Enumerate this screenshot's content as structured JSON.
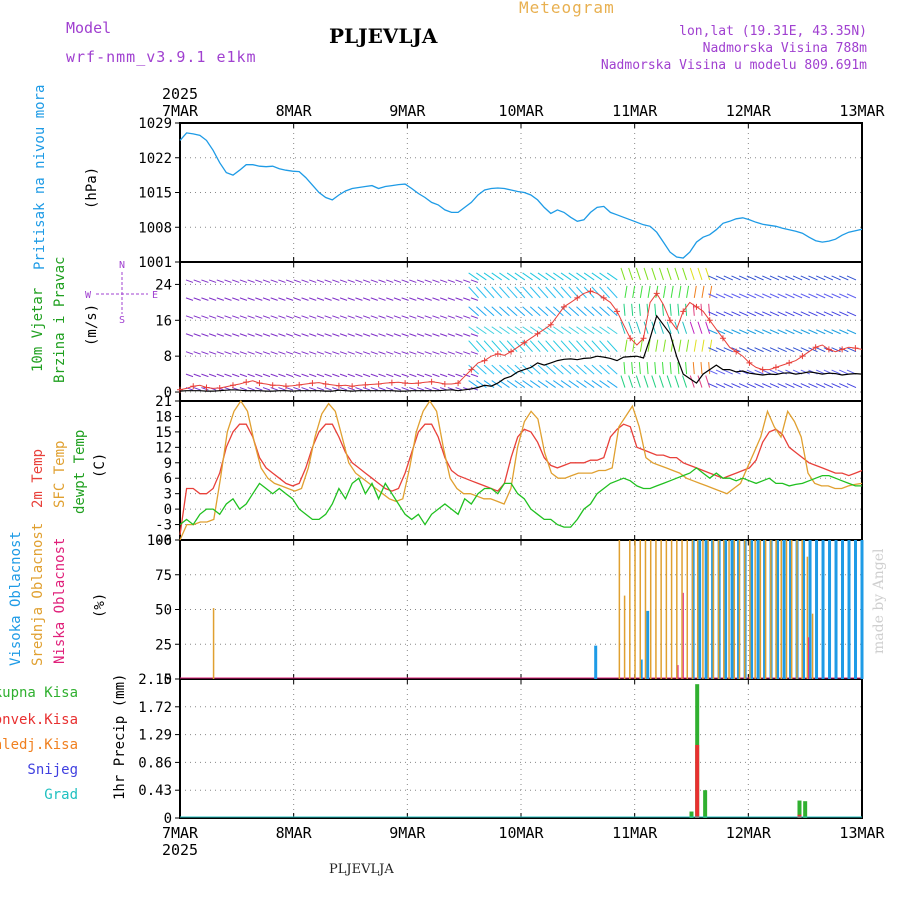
{
  "header": {
    "model_label": "Model",
    "model_name": "wrf-nmm_v3.9.1 e1km",
    "station": "PLJEVLJA",
    "title": "Meteogram",
    "lonlat": "lon,lat (19.31E, 43.35N)",
    "elevation": "Nadmorska Visina 788m",
    "model_elevation": "Nadmorska Visina u modelu 809.691m",
    "footer_station": "PLJEVLJA",
    "watermark": "made by Angel"
  },
  "colors": {
    "pressure": "#1e9be6",
    "temp2m": "#e8403a",
    "sfc": "#e0a030",
    "dew": "#20c020",
    "high_cloud": "#1e9be6",
    "mid_cloud": "#e0a030",
    "low_cloud": "#e0207a",
    "total_precip": "#30b030",
    "conv_precip": "#e83030",
    "frozen": "#f08020",
    "snow": "#4040e0",
    "grad": "#20c0c0",
    "title_orange": "#e8b050",
    "purple": "#a040d0"
  },
  "chart_data": [
    {
      "type": "line",
      "panel": "pressure",
      "ylabel": [
        "Pritisak na nivou mora",
        "(hPa)"
      ],
      "x_ticks": [
        "7MAR",
        "8MAR",
        "9MAR",
        "10MAR",
        "11MAR",
        "12MAR",
        "13MAR"
      ],
      "year": "2025",
      "ylim": [
        1001,
        1029
      ],
      "yticks": [
        1001,
        1008,
        1015,
        1022,
        1029
      ],
      "series": [
        {
          "values": [
            1025.5,
            1027,
            1026.8,
            1026.5,
            1025.5,
            1023.5,
            1021,
            1019,
            1018.5,
            1019.5,
            1020.6,
            1020.6,
            1020.3,
            1020.2,
            1020.3,
            1019.8,
            1019.5,
            1019.3,
            1019.2,
            1018,
            1016.5,
            1015,
            1014,
            1013.5,
            1014.5,
            1015.3,
            1015.8,
            1016,
            1016.2,
            1016.4,
            1015.8,
            1016.2,
            1016.4,
            1016.6,
            1016.7,
            1015.8,
            1014.8,
            1014,
            1013,
            1012.5,
            1011.5,
            1011,
            1011,
            1012,
            1013,
            1014.5,
            1015.5,
            1015.8,
            1015.9,
            1015.8,
            1015.5,
            1015.2,
            1015,
            1014.5,
            1013.5,
            1012,
            1010.8,
            1011.5,
            1011,
            1010,
            1009.2,
            1009.5,
            1011,
            1012,
            1012.2,
            1011,
            1010.5,
            1010,
            1009.5,
            1009,
            1008.5,
            1008.2,
            1007,
            1005,
            1003,
            1002,
            1001.8,
            1003,
            1005,
            1006,
            1006.5,
            1007.5,
            1008.8,
            1009.2,
            1009.7,
            1009.9,
            1009.5,
            1009,
            1008.6,
            1008.4,
            1008.2,
            1007.8,
            1007.5,
            1007.2,
            1006.8,
            1006,
            1005.3,
            1005.0,
            1005.2,
            1005.6,
            1006.4,
            1007.0,
            1007.3,
            1007.6
          ]
        }
      ]
    },
    {
      "type": "line",
      "panel": "wind",
      "ylabel": [
        "10m Vjetar",
        "Brzina i Pravac",
        "(m/s)"
      ],
      "compass": [
        "N",
        "S",
        "W",
        "E"
      ],
      "ylim": [
        -2,
        29
      ],
      "yticks": [
        0,
        8,
        16,
        24
      ],
      "speed_black": [
        0.2,
        0.3,
        0.3,
        0.3,
        0.2,
        0.2,
        0.3,
        0.4,
        0.5,
        0.4,
        0.3,
        0.3,
        0.3,
        0.2,
        0.2,
        0.3,
        0.3,
        0.2,
        0.3,
        0.3,
        0.3,
        0.3,
        0.2,
        0.2,
        0.4,
        0.3,
        0.2,
        0.3,
        0.3,
        0.3,
        0.3,
        0.3,
        0.3,
        0.2,
        0.2,
        0.3,
        0.3,
        0.3,
        0.3,
        0.3,
        0.4,
        0.5,
        0.3,
        0.5,
        0.7,
        1.0,
        1.5,
        1.3,
        2.0,
        3.0,
        3.5,
        4.5,
        5.0,
        5.5,
        6.5,
        6.0,
        6.5,
        7.0,
        7.3,
        7.4,
        7.2,
        7.5,
        7.6,
        8.0,
        7.8,
        7.5,
        7.0,
        7.8,
        7.9,
        8.0,
        7.6,
        12,
        17,
        15,
        13,
        8,
        4,
        3,
        2,
        4,
        5,
        6,
        5,
        5,
        4.5,
        4.7,
        4.2,
        4.0,
        3.8,
        4.0,
        3.9,
        4.2,
        4.3,
        4.0,
        4.2,
        4.5,
        4.3,
        4.0,
        4.2,
        4.1,
        3.8,
        4.0,
        4.1,
        4.0
      ],
      "gust_red": [
        0.5,
        0.8,
        1.3,
        1.5,
        1.0,
        0.8,
        0.9,
        1.2,
        1.5,
        1.8,
        2.2,
        2.5,
        2.0,
        1.8,
        1.5,
        1.5,
        1.3,
        1.4,
        1.6,
        1.8,
        2.0,
        2.1,
        1.8,
        1.6,
        1.4,
        1.5,
        1.3,
        1.5,
        1.6,
        1.7,
        1.8,
        2.0,
        2.1,
        2.2,
        2.0,
        1.9,
        2.0,
        2.2,
        2.3,
        2.1,
        1.8,
        1.8,
        2.0,
        3.5,
        5.0,
        6.5,
        7.0,
        8.0,
        8.5,
        8.2,
        9,
        10,
        11,
        12,
        13,
        14,
        15,
        17,
        19,
        20,
        21,
        22,
        22.5,
        22,
        21,
        20,
        18,
        15,
        12,
        10.5,
        12,
        20,
        22,
        19.5,
        16,
        14,
        18,
        20,
        19,
        18,
        16,
        14,
        12,
        10,
        9,
        8,
        6.5,
        5.5,
        5,
        5,
        5.5,
        6,
        6.5,
        7,
        8,
        9,
        10,
        10.5,
        9.5,
        9,
        9.5,
        10,
        9.8,
        9.5
      ]
    },
    {
      "type": "line",
      "panel": "temperature",
      "ylabel": [
        "2m Temp",
        "SFC Temp",
        "dewpt Temp",
        "(C)"
      ],
      "ylim": [
        -6,
        21
      ],
      "yticks": [
        -6,
        -3,
        0,
        3,
        6,
        9,
        12,
        15,
        18,
        21
      ],
      "series": [
        {
          "name": "2m Temp",
          "values": [
            -5,
            4,
            4,
            3,
            3,
            4,
            7,
            12,
            15,
            16.5,
            16.5,
            14,
            10,
            8,
            7,
            6,
            5,
            4.5,
            5,
            8,
            12,
            15,
            16.5,
            16.5,
            14,
            11,
            9,
            8,
            7,
            6,
            5,
            4,
            3.5,
            4,
            7,
            11,
            15,
            16.5,
            16.5,
            14,
            10,
            7.5,
            6.5,
            6,
            5.5,
            5,
            4.5,
            4,
            3.5,
            5,
            10,
            14,
            15.5,
            15,
            13,
            10,
            8.5,
            8,
            8.5,
            9,
            9,
            9,
            9.5,
            9.5,
            10,
            14,
            15.5,
            16.5,
            16,
            12,
            11.5,
            11,
            10.5,
            10.5,
            10,
            10,
            9,
            8.5,
            8,
            7.5,
            7,
            6.5,
            6,
            6.5,
            7,
            7.5,
            8,
            9.5,
            13,
            15,
            15.5,
            14.5,
            12,
            11,
            10,
            9,
            8.5,
            8,
            7.5,
            7,
            7,
            6.5,
            7,
            7.5
          ]
        },
        {
          "name": "SFC Temp",
          "values": [
            -6,
            -3,
            -3,
            -2.5,
            -2.5,
            -2,
            6,
            15,
            19,
            21,
            19,
            13,
            8,
            6,
            5,
            4.5,
            4,
            3.5,
            4,
            8,
            14,
            18.5,
            20.5,
            19,
            14,
            9,
            7,
            6,
            5,
            4,
            3,
            2,
            1.5,
            2,
            8,
            15,
            19,
            21,
            19,
            12,
            6,
            4,
            3,
            3,
            2.5,
            2,
            2,
            1.5,
            1,
            4,
            12,
            17,
            19,
            17.5,
            11,
            7,
            6,
            6,
            6.5,
            7,
            7,
            7,
            7.5,
            7.5,
            8,
            16,
            18,
            20,
            16,
            10,
            9,
            8.5,
            8,
            7.5,
            7,
            6,
            5.5,
            5,
            4.5,
            4,
            3.5,
            3,
            4,
            5,
            8,
            11,
            14,
            19,
            16,
            14,
            19,
            17,
            14,
            7,
            5,
            4.5,
            4.5,
            4,
            4,
            4.5,
            4.8,
            5
          ]
        },
        {
          "name": "dewpt Temp",
          "values": [
            -3,
            -2,
            -3,
            -1,
            0,
            0,
            -1,
            1,
            2,
            0,
            1,
            3,
            5,
            4,
            3,
            4,
            3,
            2,
            0,
            -1,
            -2,
            -2,
            -1,
            1,
            4,
            2,
            5,
            6,
            3,
            5,
            2,
            5,
            3,
            1,
            -1,
            -2,
            -1,
            -3,
            -1,
            0,
            1,
            0,
            -1,
            2,
            1,
            3,
            4,
            4,
            3,
            5,
            5,
            3,
            2,
            0,
            -1,
            -2,
            -2,
            -3,
            -3.5,
            -3.5,
            -2,
            0,
            1,
            3,
            4,
            5,
            5.5,
            6,
            5.5,
            4.5,
            4,
            4,
            4.5,
            5,
            5.5,
            6,
            6.5,
            7,
            8,
            7,
            6,
            7,
            6,
            6,
            5.5,
            6,
            5.5,
            5,
            5.5,
            6,
            5,
            5,
            4.5,
            4.8,
            5,
            5.5,
            6,
            6.5,
            6.5,
            6,
            5.5,
            5,
            4.5,
            4.5
          ]
        }
      ]
    },
    {
      "type": "bar",
      "panel": "clouds",
      "ylabel": [
        "Visoka Oblacnost",
        "Srednja Oblacnost",
        "Niska Oblacnost",
        "(%)"
      ],
      "ylim": [
        0,
        100
      ],
      "yticks": [
        0,
        25,
        50,
        75,
        100
      ],
      "series": [
        {
          "name": "Visoka Oblacnost",
          "values": [
            0,
            0,
            0,
            0,
            0,
            0,
            0,
            0,
            0,
            0,
            0,
            0,
            0,
            0,
            0,
            0,
            0,
            0,
            0,
            0,
            0,
            0,
            0,
            0,
            0,
            0,
            0,
            0,
            0,
            0,
            0,
            0,
            0,
            0,
            0,
            0,
            0,
            0,
            0,
            0,
            0,
            0,
            0,
            0,
            0,
            0,
            0,
            0,
            0,
            0,
            0,
            0,
            0,
            0,
            0,
            0,
            0,
            0,
            0,
            0,
            0,
            0,
            0,
            0,
            24,
            0,
            0,
            0,
            0,
            0,
            0,
            14,
            49,
            0,
            0,
            0,
            0,
            0,
            0,
            100,
            100,
            100,
            100,
            100,
            100,
            100,
            100,
            100,
            100,
            100,
            100,
            100,
            100,
            100,
            100,
            100,
            100,
            100,
            100,
            100,
            100,
            100,
            100,
            100,
            100,
            100
          ]
        },
        {
          "name": "Srednja Oblacnost",
          "values": [
            51,
            0,
            0,
            0,
            0,
            100,
            60,
            100,
            100,
            100,
            100,
            100,
            100,
            100,
            100,
            100,
            100,
            100,
            100,
            100,
            100,
            100,
            100,
            100,
            100,
            100,
            100,
            100,
            100,
            100,
            100,
            100,
            100,
            100,
            100,
            100,
            100,
            100,
            100,
            100,
            100,
            88,
            47
          ]
        },
        {
          "name": "Niska Oblacnost",
          "values": [
            0,
            0,
            0,
            0,
            0,
            0,
            0,
            0,
            0,
            0,
            0,
            0,
            0,
            0,
            0,
            0,
            10,
            62,
            0,
            0,
            0,
            0,
            0,
            0,
            0,
            0,
            0,
            0,
            0,
            0,
            0,
            0,
            0,
            0,
            0,
            0,
            0,
            0,
            0,
            0,
            0,
            30,
            0
          ]
        }
      ]
    },
    {
      "type": "bar",
      "panel": "precip",
      "ylabel": [
        "1hr Precip (mm)"
      ],
      "legend": [
        "Ukupna Kisa",
        "Konvek.Kisa",
        "Zaledj.Kisa",
        "Snijeg",
        "Grad"
      ],
      "ylim": [
        0,
        2.15
      ],
      "yticks": [
        0,
        0.43,
        0.86,
        1.29,
        1.72,
        2.15
      ],
      "series": [
        {
          "name": "Ukupna Kisa",
          "bars": [
            [
              11.5,
              0.1
            ],
            [
              11.55,
              2.07
            ],
            [
              11.62,
              0.43
            ],
            [
              12.45,
              0.27
            ],
            [
              12.5,
              0.26
            ]
          ]
        },
        {
          "name": "Konvek.Kisa",
          "bars": [
            [
              11.55,
              1.13
            ],
            [
              12.45,
              0.05
            ]
          ]
        }
      ]
    }
  ]
}
